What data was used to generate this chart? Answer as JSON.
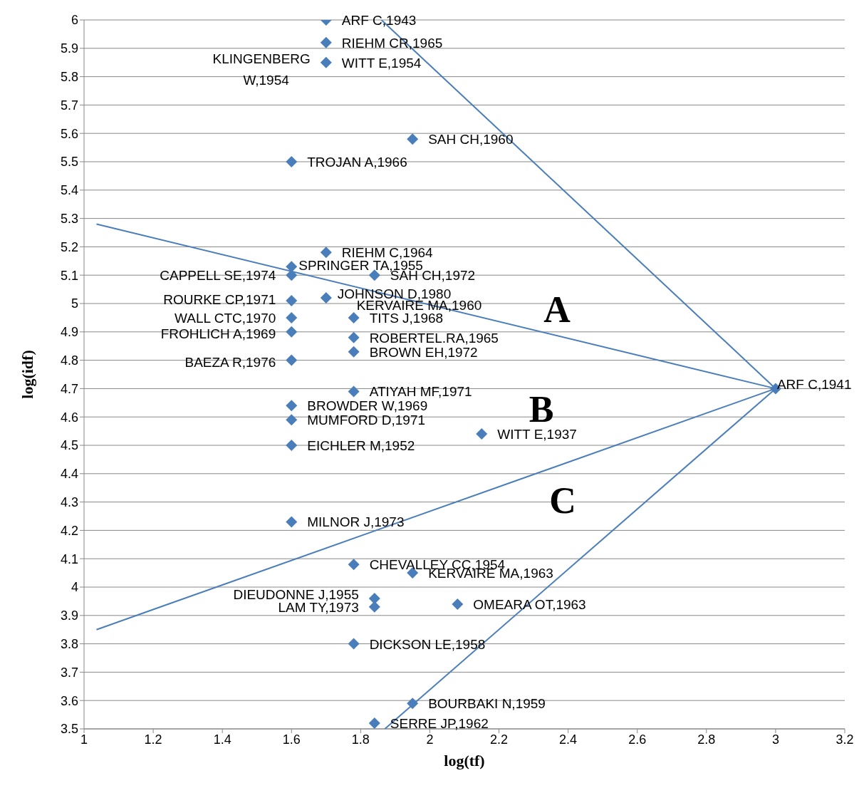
{
  "chart_data": {
    "type": "scatter",
    "xlabel": "log(tf)",
    "ylabel": "log(idf)",
    "xlim": [
      1,
      3.2
    ],
    "xticks": [
      1,
      1.2,
      1.4,
      1.6,
      1.8,
      2,
      2.2,
      2.4,
      2.6,
      2.8,
      3,
      3.2
    ],
    "ylim": [
      3.5,
      6
    ],
    "yticks": [
      3.5,
      3.6,
      3.7,
      3.8,
      3.9,
      4,
      4.1,
      4.2,
      4.3,
      4.4,
      4.5,
      4.6,
      4.7,
      4.8,
      4.9,
      5,
      5.1,
      5.2,
      5.3,
      5.4,
      5.5,
      5.6,
      5.7,
      5.8,
      5.9,
      6
    ],
    "grid": "y",
    "legend": false,
    "marker": "diamond",
    "x": [
      1.7,
      1.7,
      1.7,
      null,
      1.95,
      1.6,
      1.7,
      1.6,
      1.6,
      1.84,
      1.6,
      1.7,
      1.78,
      null,
      1.6,
      1.6,
      1.78,
      1.78,
      1.6,
      1.78,
      3.0,
      1.6,
      1.6,
      2.15,
      1.6,
      1.6,
      1.78,
      1.95,
      1.84,
      1.84,
      2.08,
      1.78,
      1.95,
      1.84
    ],
    "series": [
      {
        "color": "#4a7ebb",
        "values": [
          6.0,
          5.92,
          5.85,
          null,
          5.58,
          5.5,
          5.18,
          5.13,
          5.1,
          5.1,
          5.01,
          5.02,
          4.95,
          null,
          4.95,
          4.9,
          4.88,
          4.83,
          4.8,
          4.69,
          4.7,
          4.64,
          4.59,
          4.54,
          4.5,
          4.23,
          4.08,
          4.05,
          3.96,
          3.93,
          3.94,
          3.8,
          3.59,
          3.52
        ]
      },
      {
        "type": "line",
        "marker": "none",
        "color": "#4a7ebb",
        "x": [
          1.036,
          3.0
        ],
        "values": [
          5.28,
          4.7
        ]
      },
      {
        "type": "line",
        "marker": "none",
        "color": "#4a7ebb",
        "x": [
          1.036,
          3.0
        ],
        "values": [
          3.85,
          4.7
        ]
      },
      {
        "type": "line",
        "marker": "none",
        "color": "#4a7ebb",
        "x": [
          1.86,
          3.0
        ],
        "values": [
          6.0,
          4.7
        ]
      },
      {
        "type": "line",
        "marker": "none",
        "color": "#4a7ebb",
        "x": [
          1.87,
          3.0
        ],
        "values": [
          3.5,
          4.7
        ]
      }
    ],
    "annotations": [
      {
        "text": "ARF C,1943",
        "x": 1.7,
        "y": 6.0
      },
      {
        "text": "RIEHM CR,1965",
        "x": 1.7,
        "y": 5.92
      },
      {
        "text": "WITT E,1954",
        "x": 1.7,
        "y": 5.85
      },
      {
        "text": "KLINGENBERG W,1954",
        "x": 1.7,
        "y": 5.85
      },
      {
        "text": "SAH CH,1960",
        "x": 1.95,
        "y": 5.58
      },
      {
        "text": "TROJAN A,1966",
        "x": 1.6,
        "y": 5.5
      },
      {
        "text": "RIEHM C,1964",
        "x": 1.7,
        "y": 5.18
      },
      {
        "text": "SPRINGER TA,1955",
        "x": 1.6,
        "y": 5.13
      },
      {
        "text": "CAPPELL SE,1974",
        "x": 1.6,
        "y": 5.1
      },
      {
        "text": "SAH CH,1972",
        "x": 1.84,
        "y": 5.1
      },
      {
        "text": "ROURKE CP,1971",
        "x": 1.6,
        "y": 5.01
      },
      {
        "text": "JOHNSON D,1980",
        "x": 1.7,
        "y": 5.02
      },
      {
        "text": "KERVAIRE MA,1960",
        "x": 1.78,
        "y": 4.95
      },
      {
        "text": "TITS J,1968",
        "x": 1.78,
        "y": 4.95
      },
      {
        "text": "WALL CTC,1970",
        "x": 1.6,
        "y": 4.95
      },
      {
        "text": "FROHLICH A,1969",
        "x": 1.6,
        "y": 4.9
      },
      {
        "text": "ROBERTEL.RA,1965",
        "x": 1.78,
        "y": 4.88
      },
      {
        "text": "BROWN EH,1972",
        "x": 1.78,
        "y": 4.83
      },
      {
        "text": "BAEZA R,1976",
        "x": 1.6,
        "y": 4.8
      },
      {
        "text": "ATIYAH MF,1971",
        "x": 1.78,
        "y": 4.69
      },
      {
        "text": "ARF C,1941",
        "x": 3.0,
        "y": 4.7
      },
      {
        "text": "BROWDER W,1969",
        "x": 1.6,
        "y": 4.64
      },
      {
        "text": "MUMFORD D,1971",
        "x": 1.6,
        "y": 4.59
      },
      {
        "text": "WITT E,1937",
        "x": 2.15,
        "y": 4.54
      },
      {
        "text": "EICHLER M,1952",
        "x": 1.6,
        "y": 4.5
      },
      {
        "text": "MILNOR J,1973",
        "x": 1.6,
        "y": 4.23
      },
      {
        "text": "CHEVALLEY CC,1954",
        "x": 1.78,
        "y": 4.08
      },
      {
        "text": "KERVAIRE MA,1963",
        "x": 1.95,
        "y": 4.05
      },
      {
        "text": "DIEUDONNE J,1955",
        "x": 1.84,
        "y": 3.96
      },
      {
        "text": "LAM TY,1973",
        "x": 1.84,
        "y": 3.93
      },
      {
        "text": "OMEARA OT,1963",
        "x": 2.08,
        "y": 3.94
      },
      {
        "text": "DICKSON LE,1958",
        "x": 1.78,
        "y": 3.8
      },
      {
        "text": "BOURBAKI N,1959",
        "x": 1.95,
        "y": 3.59
      },
      {
        "text": "SERRE JP,1962",
        "x": 1.84,
        "y": 3.52
      },
      "A",
      "B",
      "C"
    ]
  }
}
